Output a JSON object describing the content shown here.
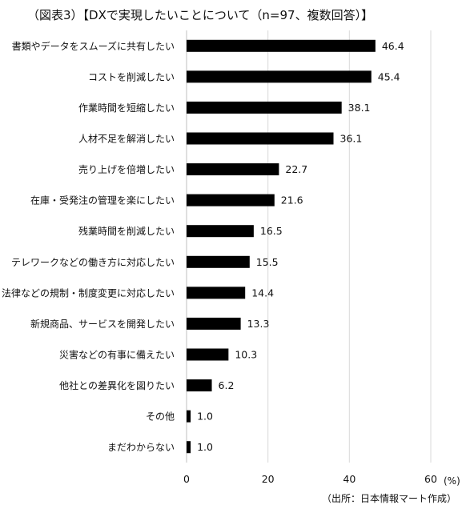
{
  "title": "（図表3）【DXで実現したいことについて（n=97、複数回答）】",
  "unit": "(%)",
  "source": "（出所：日本情報マート作成）",
  "colors": {
    "bar": "#000000",
    "grid": "#d9d9d9",
    "axis": "#bfbfbf"
  },
  "chart_data": {
    "type": "bar",
    "orientation": "horizontal",
    "categories": [
      "書類やデータをスムーズに共有したい",
      "コストを削減したい",
      "作業時間を短縮したい",
      "人材不足を解消したい",
      "売り上げを倍増したい",
      "在庫・受発注の管理を楽にしたい",
      "残業時間を削減したい",
      "テレワークなどの働き方に対応したい",
      "法律などの規制・制度変更に対応したい",
      "新規商品、サービスを開発したい",
      "災害などの有事に備えたい",
      "他社との差異化を図りたい",
      "その他",
      "まだわからない"
    ],
    "values": [
      46.4,
      45.4,
      38.1,
      36.1,
      22.7,
      21.6,
      16.5,
      15.5,
      14.4,
      13.3,
      10.3,
      6.2,
      1.0,
      1.0
    ],
    "value_labels": [
      "46.4",
      "45.4",
      "38.1",
      "36.1",
      "22.7",
      "21.6",
      "16.5",
      "15.5",
      "14.4",
      "13.3",
      "10.3",
      "6.2",
      "1.0",
      "1.0"
    ],
    "xlim": [
      0,
      60
    ],
    "xticks": [
      0,
      20,
      40,
      60
    ],
    "xtick_labels": [
      "0",
      "20",
      "40",
      "60"
    ],
    "grid": true,
    "legend": "none"
  }
}
